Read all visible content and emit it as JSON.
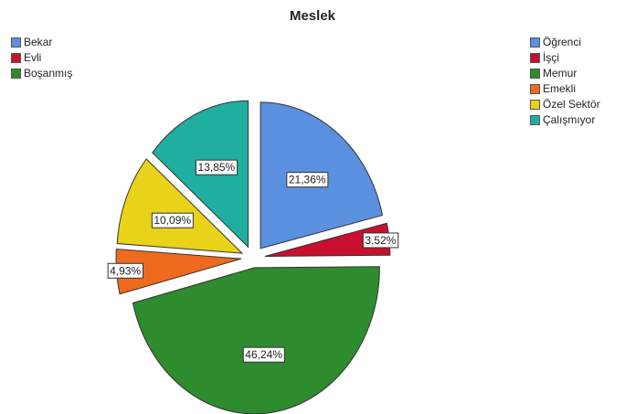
{
  "chart_data": {
    "type": "pie",
    "title": "Meslek",
    "categories": [
      "Öğrenci",
      "İşçi",
      "Memur",
      "Emekli",
      "Özel Sektör",
      "Çalışmıyor"
    ],
    "values": [
      21.36,
      3.52,
      46.24,
      4.93,
      10.09,
      13.85
    ],
    "labels": [
      "21,36%",
      "3,52%",
      "46,24%",
      "4,93%",
      "10,09%",
      "13,85%"
    ],
    "colors": [
      "#5B8FE0",
      "#C8102E",
      "#2E8B2E",
      "#EE6A1F",
      "#E8D21A",
      "#1FAEA0"
    ],
    "exploded": true,
    "legend_position": "top-right",
    "secondary_legend": {
      "position": "top-left",
      "items": [
        {
          "label": "Bekar",
          "color": "#5B8FE0"
        },
        {
          "label": "Evli",
          "color": "#C8102E"
        },
        {
          "label": "Boşanmış",
          "color": "#2E8B2E"
        }
      ]
    }
  }
}
